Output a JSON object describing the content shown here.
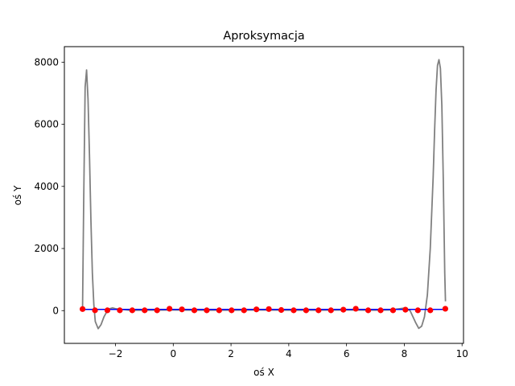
{
  "chart_data": {
    "type": "line",
    "title": "Aproksymacja",
    "xlabel": "oś X",
    "ylabel": "oś Y",
    "xlim": [
      -3.77,
      10.05
    ],
    "ylim": [
      -1055,
      8500
    ],
    "x_ticks": [
      -2,
      0,
      2,
      4,
      6,
      8,
      10
    ],
    "y_ticks": [
      0,
      2000,
      4000,
      6000,
      8000
    ],
    "grid": false,
    "colors": {
      "approximation": "#808080",
      "function": "#0000ff",
      "nodes": "#ff0000"
    },
    "series": [
      {
        "type": "line",
        "x": [
          -3.14,
          -3.1,
          -3.05,
          -3.0,
          -2.95,
          -2.9,
          -2.85,
          -2.8,
          -2.75,
          -2.7,
          -2.6,
          -2.5,
          -2.4,
          -2.3,
          -2.2,
          -2.1,
          -2.0,
          -1.5,
          -1.0,
          0.0,
          1.0,
          2.0,
          3.0,
          4.0,
          5.0,
          6.0,
          7.0,
          7.5,
          8.0,
          8.2,
          8.4,
          8.5,
          8.6,
          8.7,
          8.8,
          8.9,
          9.0,
          9.05,
          9.1,
          9.15,
          9.2,
          9.25,
          9.3,
          9.35,
          9.4,
          9.425
        ],
        "y": [
          100,
          3500,
          7200,
          7750,
          6800,
          5000,
          2900,
          1200,
          200,
          -350,
          -580,
          -450,
          -200,
          -30,
          60,
          90,
          60,
          10,
          15,
          20,
          15,
          15,
          20,
          15,
          15,
          20,
          15,
          20,
          80,
          0,
          -400,
          -570,
          -500,
          -200,
          500,
          2000,
          4300,
          5800,
          7100,
          7900,
          8080,
          7800,
          6600,
          4200,
          1200,
          300
        ]
      },
      {
        "type": "line",
        "x": [
          -3.14,
          9.42
        ],
        "y": [
          40,
          40
        ]
      },
      {
        "type": "scatter",
        "x": [
          -3.14,
          -2.71,
          -2.28,
          -1.85,
          -1.42,
          -0.99,
          -0.56,
          -0.13,
          0.3,
          0.73,
          1.16,
          1.59,
          2.02,
          2.45,
          2.88,
          3.31,
          3.74,
          4.17,
          4.6,
          5.03,
          5.46,
          5.89,
          6.32,
          6.75,
          7.18,
          7.61,
          8.04,
          8.47,
          8.9,
          9.42
        ],
        "y": [
          50,
          10,
          10,
          10,
          10,
          10,
          10,
          60,
          40,
          10,
          10,
          10,
          10,
          10,
          40,
          50,
          20,
          10,
          10,
          10,
          10,
          30,
          60,
          10,
          10,
          10,
          30,
          10,
          10,
          60
        ]
      }
    ]
  }
}
